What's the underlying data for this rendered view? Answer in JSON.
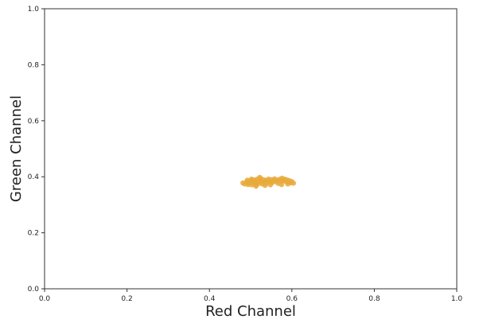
{
  "chart_data": {
    "type": "scatter",
    "title": "",
    "xlabel": "Red Channel",
    "ylabel": "Green Channel",
    "xlim": [
      0.0,
      1.0
    ],
    "ylim": [
      0.0,
      1.0
    ],
    "xticks": [
      "0.0",
      "0.2",
      "0.4",
      "0.6",
      "0.8",
      "1.0"
    ],
    "yticks": [
      "0.0",
      "0.2",
      "0.4",
      "0.6",
      "0.8",
      "1.0"
    ],
    "grid": false,
    "legend": "none",
    "point_color": "#e8a93a",
    "points": [
      {
        "x": 0.481,
        "y": 0.378
      },
      {
        "x": 0.486,
        "y": 0.374
      },
      {
        "x": 0.49,
        "y": 0.382
      },
      {
        "x": 0.494,
        "y": 0.372
      },
      {
        "x": 0.497,
        "y": 0.378
      },
      {
        "x": 0.5,
        "y": 0.385
      },
      {
        "x": 0.503,
        "y": 0.371
      },
      {
        "x": 0.506,
        "y": 0.377
      },
      {
        "x": 0.508,
        "y": 0.389
      },
      {
        "x": 0.511,
        "y": 0.381
      },
      {
        "x": 0.514,
        "y": 0.372
      },
      {
        "x": 0.516,
        "y": 0.392
      },
      {
        "x": 0.519,
        "y": 0.385
      },
      {
        "x": 0.521,
        "y": 0.376
      },
      {
        "x": 0.524,
        "y": 0.394
      },
      {
        "x": 0.526,
        "y": 0.383
      },
      {
        "x": 0.529,
        "y": 0.374
      },
      {
        "x": 0.531,
        "y": 0.39
      },
      {
        "x": 0.534,
        "y": 0.38
      },
      {
        "x": 0.537,
        "y": 0.387
      },
      {
        "x": 0.54,
        "y": 0.377
      },
      {
        "x": 0.543,
        "y": 0.392
      },
      {
        "x": 0.546,
        "y": 0.383
      },
      {
        "x": 0.549,
        "y": 0.39
      },
      {
        "x": 0.552,
        "y": 0.379
      },
      {
        "x": 0.555,
        "y": 0.386
      },
      {
        "x": 0.558,
        "y": 0.393
      },
      {
        "x": 0.561,
        "y": 0.382
      },
      {
        "x": 0.564,
        "y": 0.388
      },
      {
        "x": 0.567,
        "y": 0.376
      },
      {
        "x": 0.57,
        "y": 0.391
      },
      {
        "x": 0.573,
        "y": 0.384
      },
      {
        "x": 0.576,
        "y": 0.395
      },
      {
        "x": 0.579,
        "y": 0.386
      },
      {
        "x": 0.582,
        "y": 0.392
      },
      {
        "x": 0.585,
        "y": 0.383
      },
      {
        "x": 0.588,
        "y": 0.389
      },
      {
        "x": 0.591,
        "y": 0.381
      },
      {
        "x": 0.594,
        "y": 0.386
      },
      {
        "x": 0.597,
        "y": 0.378
      },
      {
        "x": 0.6,
        "y": 0.383
      },
      {
        "x": 0.604,
        "y": 0.377
      },
      {
        "x": 0.492,
        "y": 0.388
      },
      {
        "x": 0.502,
        "y": 0.392
      },
      {
        "x": 0.513,
        "y": 0.366
      },
      {
        "x": 0.522,
        "y": 0.398
      },
      {
        "x": 0.535,
        "y": 0.369
      },
      {
        "x": 0.548,
        "y": 0.371
      },
      {
        "x": 0.575,
        "y": 0.372
      },
      {
        "x": 0.59,
        "y": 0.374
      }
    ]
  }
}
